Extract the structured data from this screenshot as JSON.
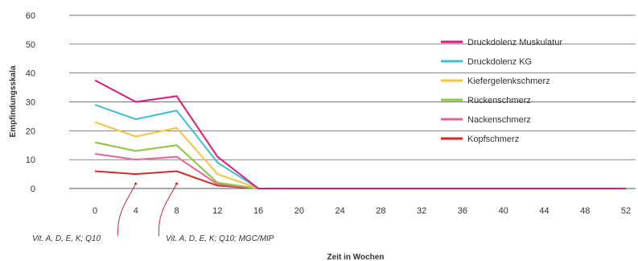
{
  "chart_data": {
    "type": "line",
    "xlabel": "Zeit in Wochen",
    "ylabel": "Empfindungsskala",
    "x": [
      0,
      4,
      8,
      12,
      16,
      20,
      24,
      28,
      32,
      36,
      40,
      44,
      48,
      52
    ],
    "ylim": [
      0,
      60
    ],
    "yticks": [
      0,
      10,
      20,
      30,
      40,
      50,
      60
    ],
    "grid": "horizontal",
    "legend_position": "right",
    "series": [
      {
        "name": "Druckdolenz Muskulatur",
        "color": "#e0197c",
        "values": [
          37.5,
          30,
          32,
          11,
          0,
          0,
          0,
          0,
          0,
          0,
          0,
          0,
          0,
          0
        ]
      },
      {
        "name": "Druckdolenz KG",
        "color": "#3fbfd2",
        "values": [
          29,
          24,
          27,
          9,
          0,
          0,
          0,
          0,
          0,
          0,
          0,
          0,
          0,
          0
        ]
      },
      {
        "name": "Kiefergelenkschmerz",
        "color": "#f7c342",
        "values": [
          23,
          18,
          21,
          5,
          0,
          0,
          0,
          0,
          0,
          0,
          0,
          0,
          0,
          0
        ]
      },
      {
        "name": "Rückenschmerz",
        "color": "#8cc63f",
        "values": [
          16,
          13,
          15,
          2,
          0,
          0,
          0,
          0,
          0,
          0,
          0,
          0,
          0,
          0
        ]
      },
      {
        "name": "Nackenschmerz",
        "color": "#e8658f",
        "values": [
          12,
          10,
          11,
          1.5,
          0,
          0,
          0,
          0,
          0,
          0,
          0,
          0,
          0,
          0
        ]
      },
      {
        "name": "Kopfschmerz",
        "color": "#d42a2a",
        "values": [
          6,
          5,
          6,
          1,
          0,
          0,
          0,
          0,
          0,
          0,
          0,
          0,
          0,
          0
        ]
      }
    ],
    "annotations": [
      {
        "x": 4,
        "text": "Vit. A, D, E, K; Q10"
      },
      {
        "x": 8,
        "text": "Vit. A, D, E, K; Q10; MGC/MIP"
      }
    ]
  }
}
